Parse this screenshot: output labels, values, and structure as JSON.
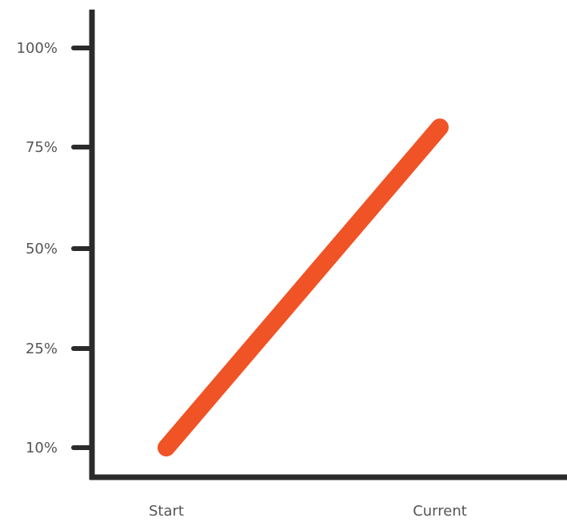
{
  "chart_data": {
    "type": "line",
    "title": "",
    "xlabel": "",
    "ylabel": "",
    "categories": [
      "Start",
      "Current"
    ],
    "y_ticks": [
      {
        "value": 10,
        "label": "10%"
      },
      {
        "value": 25,
        "label": "25%"
      },
      {
        "value": 50,
        "label": "50%"
      },
      {
        "value": 75,
        "label": "75%"
      },
      {
        "value": 100,
        "label": "100%"
      }
    ],
    "series": [
      {
        "values": [
          10,
          80
        ]
      }
    ],
    "grid": false,
    "legend": "none",
    "colors": {
      "line": "#f05325",
      "axis": "#2b2b2b",
      "label": "#555555"
    }
  }
}
